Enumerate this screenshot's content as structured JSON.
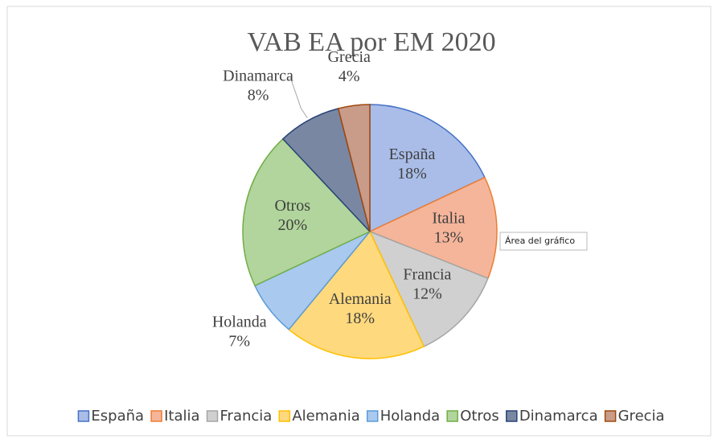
{
  "chart_data": {
    "type": "pie",
    "title": "VAB EA por EM 2020",
    "categories": [
      "España",
      "Italia",
      "Francia",
      "Alemania",
      "Holanda",
      "Otros",
      "Dinamarca",
      "Grecia"
    ],
    "values": [
      18,
      13,
      12,
      18,
      7,
      20,
      8,
      4
    ],
    "value_labels": [
      "18%",
      "13%",
      "12%",
      "18%",
      "7%",
      "20%",
      "8%",
      "4%"
    ],
    "colors": [
      "#a9bde8",
      "#f5b59a",
      "#d0d0d0",
      "#ffd97e",
      "#a9c9ef",
      "#b1d59c",
      "#7a87a2",
      "#c99b89"
    ],
    "edge_colors": [
      "#4472c4",
      "#ed7d31",
      "#a5a5a5",
      "#ffc000",
      "#5b9bd5",
      "#70ad47",
      "#264478",
      "#9e480e"
    ],
    "legend": "bottom",
    "tooltip": "Área del gráfico"
  }
}
